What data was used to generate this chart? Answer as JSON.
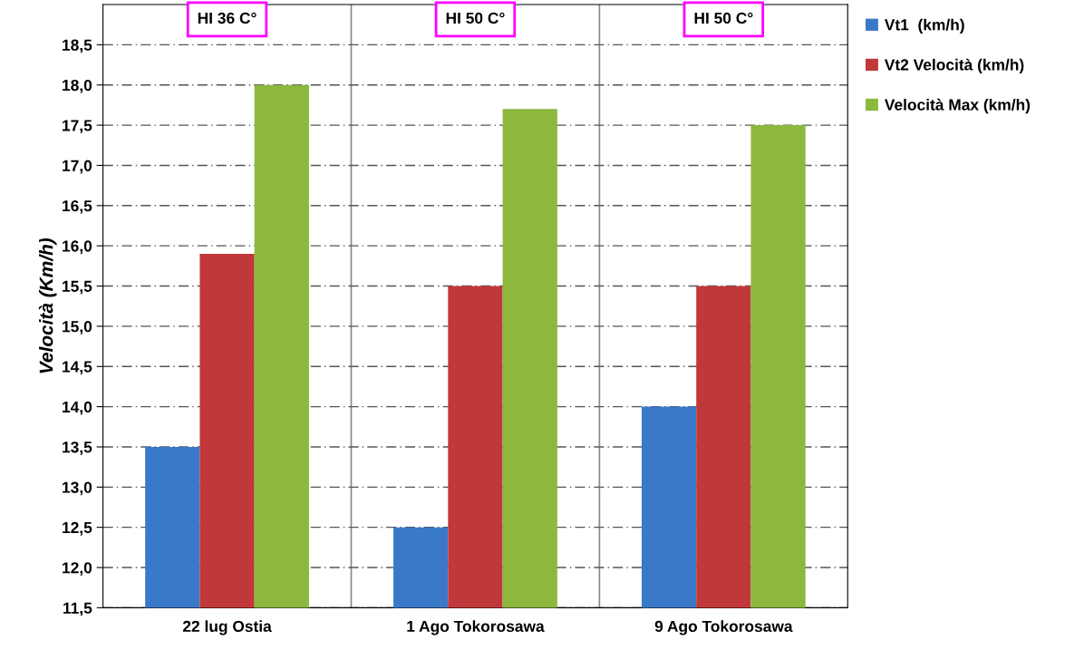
{
  "chart_data": {
    "type": "bar",
    "ylabel": "Velocità (Km/h)",
    "categories": [
      "22 lug Ostia",
      "1 Ago Tokorosawa",
      "9 Ago Tokorosawa"
    ],
    "series": [
      {
        "name": "Vt1  (km/h)",
        "color": "#3a78c8",
        "values": [
          13.5,
          12.5,
          14.0
        ]
      },
      {
        "name": "Vt2 Velocità (km/h)",
        "color": "#c0383a",
        "values": [
          15.9,
          15.5,
          15.5
        ]
      },
      {
        "name": "Velocità Max (km/h)",
        "color": "#8cb83e",
        "values": [
          18.0,
          17.7,
          17.5
        ]
      }
    ],
    "ylim": [
      11.5,
      19.0
    ],
    "yticks": [
      {
        "value": 11.5,
        "label": "11,5"
      },
      {
        "value": 12.0,
        "label": "12,0"
      },
      {
        "value": 12.5,
        "label": "12,5"
      },
      {
        "value": 13.0,
        "label": "13,0"
      },
      {
        "value": 13.5,
        "label": "13,5"
      },
      {
        "value": 14.0,
        "label": "14,0"
      },
      {
        "value": 14.5,
        "label": "14,5"
      },
      {
        "value": 15.0,
        "label": "15,0"
      },
      {
        "value": 15.5,
        "label": "15,5"
      },
      {
        "value": 16.0,
        "label": "16,0"
      },
      {
        "value": 16.5,
        "label": "16,5"
      },
      {
        "value": 17.0,
        "label": "17,0"
      },
      {
        "value": 17.5,
        "label": "17,5"
      },
      {
        "value": 18.0,
        "label": "18,0"
      },
      {
        "value": 18.5,
        "label": "18,5"
      }
    ],
    "annotations": [
      "HI 36 C°",
      "HI 50 C°",
      "HI 50 C°"
    ],
    "grid": true,
    "legend": "right"
  }
}
